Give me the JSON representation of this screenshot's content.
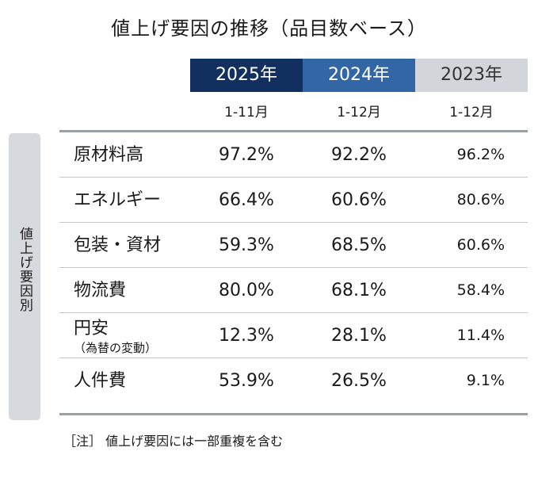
{
  "title": "値上げ要因の推移（品目数ベース）",
  "side_label": "値上げ要因別",
  "note": "［注］ 値上げ要因には一部重複を含む",
  "chart_data": {
    "type": "table",
    "title": "値上げ要因の推移（品目数ベース）",
    "columns": [
      {
        "year": "2025年",
        "period": "1-11月"
      },
      {
        "year": "2024年",
        "period": "1-12月"
      },
      {
        "year": "2023年",
        "period": "1-12月"
      }
    ],
    "rows": [
      {
        "label": "原材料高",
        "sublabel": "",
        "values": [
          "97.2%",
          "92.2%",
          "96.2%"
        ]
      },
      {
        "label": "エネルギー",
        "sublabel": "",
        "values": [
          "66.4%",
          "60.6%",
          "80.6%"
        ]
      },
      {
        "label": "包装・資材",
        "sublabel": "",
        "values": [
          "59.3%",
          "68.5%",
          "60.6%"
        ]
      },
      {
        "label": "物流費",
        "sublabel": "",
        "values": [
          "80.0%",
          "68.1%",
          "58.4%"
        ]
      },
      {
        "label": "円安",
        "sublabel": "（為替の変動）",
        "values": [
          "12.3%",
          "28.1%",
          "11.4%"
        ]
      },
      {
        "label": "人件費",
        "sublabel": "",
        "values": [
          "53.9%",
          "26.5%",
          "9.1%"
        ]
      }
    ]
  },
  "colors": {
    "header_2025": "#12305f",
    "header_2024": "#3266a4",
    "header_2023": "#d2d6db",
    "sidebar": "#d6dadf"
  }
}
